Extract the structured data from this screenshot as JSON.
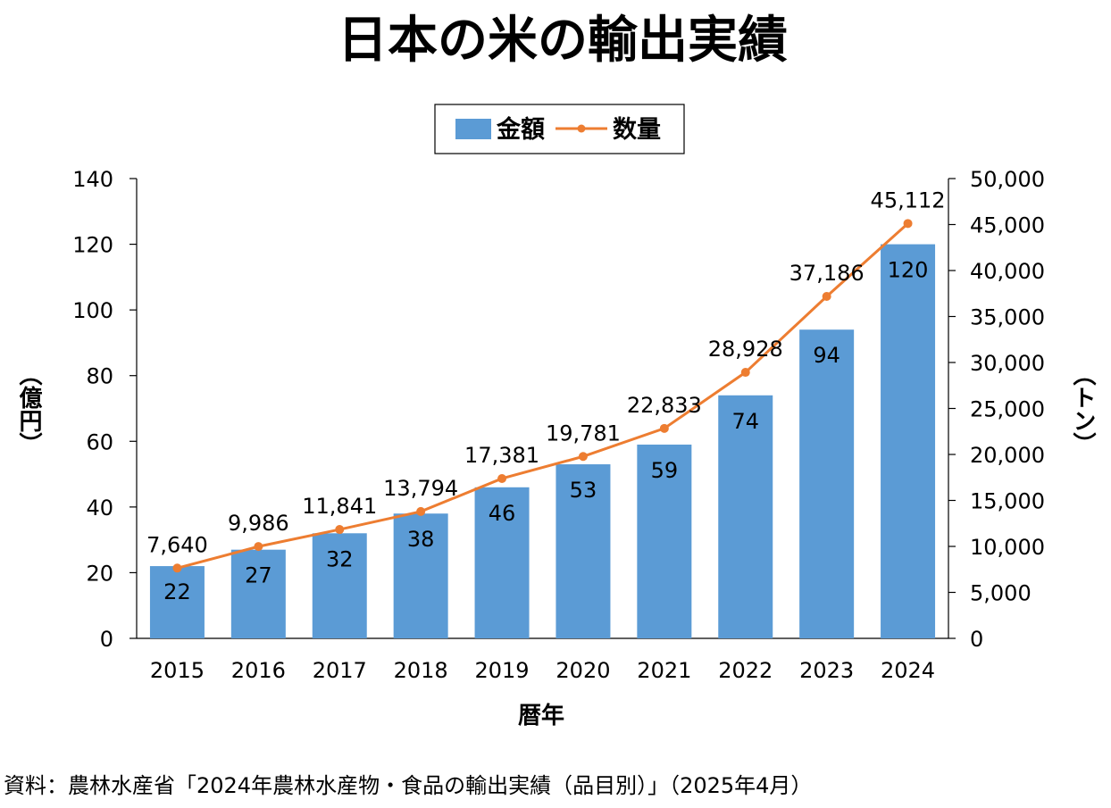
{
  "chart_data": {
    "type": "bar",
    "title": "日本の米の輸出実績",
    "categories": [
      "2015",
      "2016",
      "2017",
      "2018",
      "2019",
      "2020",
      "2021",
      "2022",
      "2023",
      "2024"
    ],
    "xlabel": "暦年",
    "ylabel_left": "（億円）",
    "ylabel_right": "（トン）",
    "ylim_left": [
      0,
      140
    ],
    "yticks_left": [
      "0",
      "20",
      "40",
      "60",
      "80",
      "100",
      "120",
      "140"
    ],
    "ylim_right": [
      0,
      50000
    ],
    "yticks_right": [
      "0",
      "5,000",
      "10,000",
      "15,000",
      "20,000",
      "25,000",
      "30,000",
      "35,000",
      "40,000",
      "45,000",
      "50,000"
    ],
    "legend_position": "top-center",
    "grid": false,
    "series": [
      {
        "name": "金額",
        "type": "bar",
        "axis": "left",
        "color": "#5B9BD5",
        "values": [
          22,
          27,
          32,
          38,
          46,
          53,
          59,
          74,
          94,
          120
        ],
        "labels": [
          "22",
          "27",
          "32",
          "38",
          "46",
          "53",
          "59",
          "74",
          "94",
          "120"
        ]
      },
      {
        "name": "数量",
        "type": "line",
        "axis": "right",
        "color": "#ED7D31",
        "values": [
          7640,
          9986,
          11841,
          13794,
          17381,
          19781,
          22833,
          28928,
          37186,
          45112
        ],
        "labels": [
          "7,640",
          "9,986",
          "11,841",
          "13,794",
          "17,381",
          "19,781",
          "22,833",
          "28,928",
          "37,186",
          "45,112"
        ]
      }
    ]
  },
  "source": "資料：農林水産省「2024年農林水産物・食品の輸出実績（品目別）」（2025年4月）"
}
